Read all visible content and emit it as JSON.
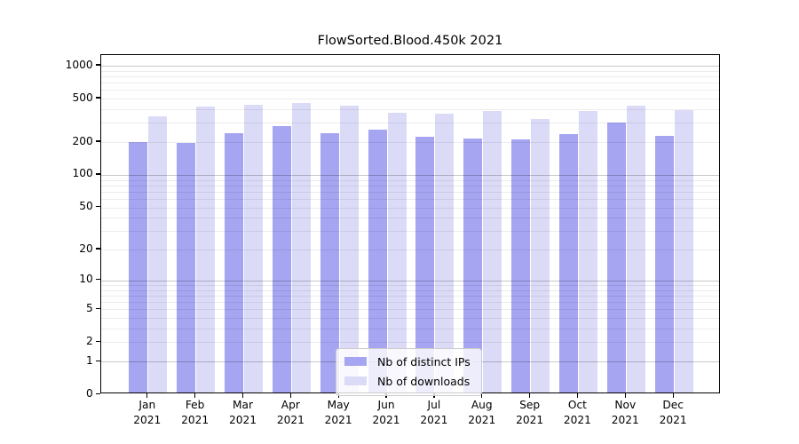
{
  "chart_data": {
    "type": "bar",
    "title": "FlowSorted.Blood.450k 2021",
    "categories": [
      {
        "month": "Jan",
        "year": "2021"
      },
      {
        "month": "Feb",
        "year": "2021"
      },
      {
        "month": "Mar",
        "year": "2021"
      },
      {
        "month": "Apr",
        "year": "2021"
      },
      {
        "month": "May",
        "year": "2021"
      },
      {
        "month": "Jun",
        "year": "2021"
      },
      {
        "month": "Jul",
        "year": "2021"
      },
      {
        "month": "Aug",
        "year": "2021"
      },
      {
        "month": "Sep",
        "year": "2021"
      },
      {
        "month": "Oct",
        "year": "2021"
      },
      {
        "month": "Nov",
        "year": "2021"
      },
      {
        "month": "Dec",
        "year": "2021"
      }
    ],
    "series": [
      {
        "name": "Nb of distinct IPs",
        "color": "#a5a5f1",
        "values": [
          193,
          188,
          233,
          268,
          234,
          252,
          215,
          207,
          206,
          229,
          290,
          222
        ]
      },
      {
        "name": "Nb of downloads",
        "color": "#dbdbf8",
        "values": [
          331,
          407,
          424,
          440,
          416,
          358,
          351,
          372,
          315,
          373,
          416,
          381
        ]
      }
    ],
    "y_axis": {
      "scale": "log10(value+1)",
      "tick_labels": [
        "1000",
        "500",
        "200",
        "100",
        "50",
        "20",
        "10",
        "5",
        "2",
        "1",
        "0"
      ],
      "tick_values": [
        1000,
        500,
        200,
        100,
        50,
        20,
        10,
        5,
        2,
        1,
        0
      ],
      "range": [
        0,
        1260
      ]
    },
    "grid": {
      "major_values": [
        1,
        10,
        100,
        1000
      ],
      "minor_values": [
        2,
        3,
        4,
        5,
        6,
        7,
        8,
        9,
        20,
        30,
        40,
        50,
        60,
        70,
        80,
        90,
        200,
        300,
        400,
        500,
        600,
        700,
        800,
        900
      ]
    },
    "legend": {
      "position": "bottom-center",
      "entries": [
        "Nb of distinct IPs",
        "Nb of downloads"
      ]
    }
  },
  "colors": {
    "ips_bar": "#a5a5f1",
    "downloads_bar": "#dbdbf8",
    "grid_major": "#c6c6c6",
    "grid_minor": "#ebebeb",
    "axis": "#000000",
    "legend_border": "#cccccc",
    "background": "#ffffff"
  }
}
